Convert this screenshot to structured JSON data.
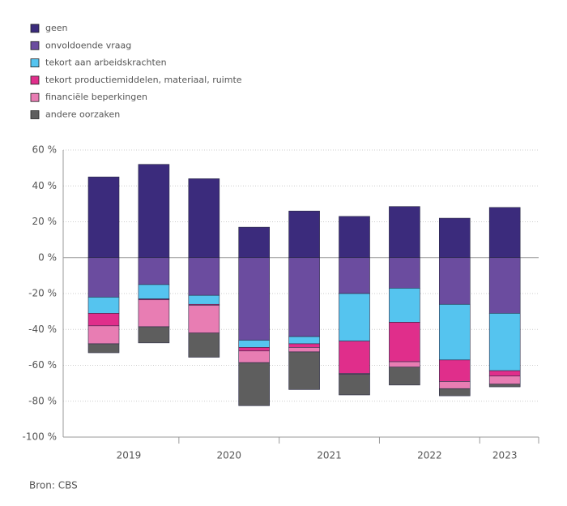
{
  "chart_data": {
    "type": "stacked_bar",
    "categories": [
      "2019",
      null,
      "2020",
      null,
      "2021",
      null,
      "2022",
      null,
      "2023"
    ],
    "series": [
      {
        "name": "geen",
        "color": "#3b2b7c",
        "values": [
          45,
          52,
          44,
          17,
          26,
          23,
          28.5,
          22,
          28
        ]
      },
      {
        "name": "onvoldoende vraag",
        "color": "#6b4c9f",
        "values": [
          -22,
          -15,
          -21,
          -46,
          -44,
          -20,
          -17,
          -26,
          -31
        ]
      },
      {
        "name": "tekort aan arbeidskrachten",
        "color": "#55c4ef",
        "values": [
          -9,
          -8,
          -5,
          -4,
          -4,
          -26.5,
          -19,
          -31,
          -32
        ]
      },
      {
        "name": "tekort productiemiddelen, materiaal, ruimte",
        "color": "#e02e8b",
        "values": [
          -7,
          -0.5,
          -0.5,
          -2,
          -2,
          -18,
          -22,
          -12,
          -3
        ]
      },
      {
        "name": "financiële beperkingen",
        "color": "#e87db3",
        "values": [
          -10,
          -15,
          -15.5,
          -6.5,
          -2.5,
          -0.5,
          -3,
          -4,
          -4.5
        ]
      },
      {
        "name": "andere oorzaken",
        "color": "#5e5e5e",
        "values": [
          -5,
          -9,
          -13.5,
          -24,
          -21,
          -11.5,
          -10,
          -4,
          -1.5
        ]
      }
    ],
    "ylim": [
      -100,
      60
    ],
    "yticks": [
      {
        "value": -100,
        "label": "-100 %"
      },
      {
        "value": -80,
        "label": "-80 %"
      },
      {
        "value": -60,
        "label": "-60 %"
      },
      {
        "value": -40,
        "label": "-40 %"
      },
      {
        "value": -20,
        "label": "-20 %"
      },
      {
        "value": 0,
        "label": "0 %"
      },
      {
        "value": 20,
        "label": "20 %"
      },
      {
        "value": 40,
        "label": "40 %"
      },
      {
        "value": 60,
        "label": "60 %"
      }
    ],
    "grid": true,
    "source": "Bron: CBS"
  }
}
